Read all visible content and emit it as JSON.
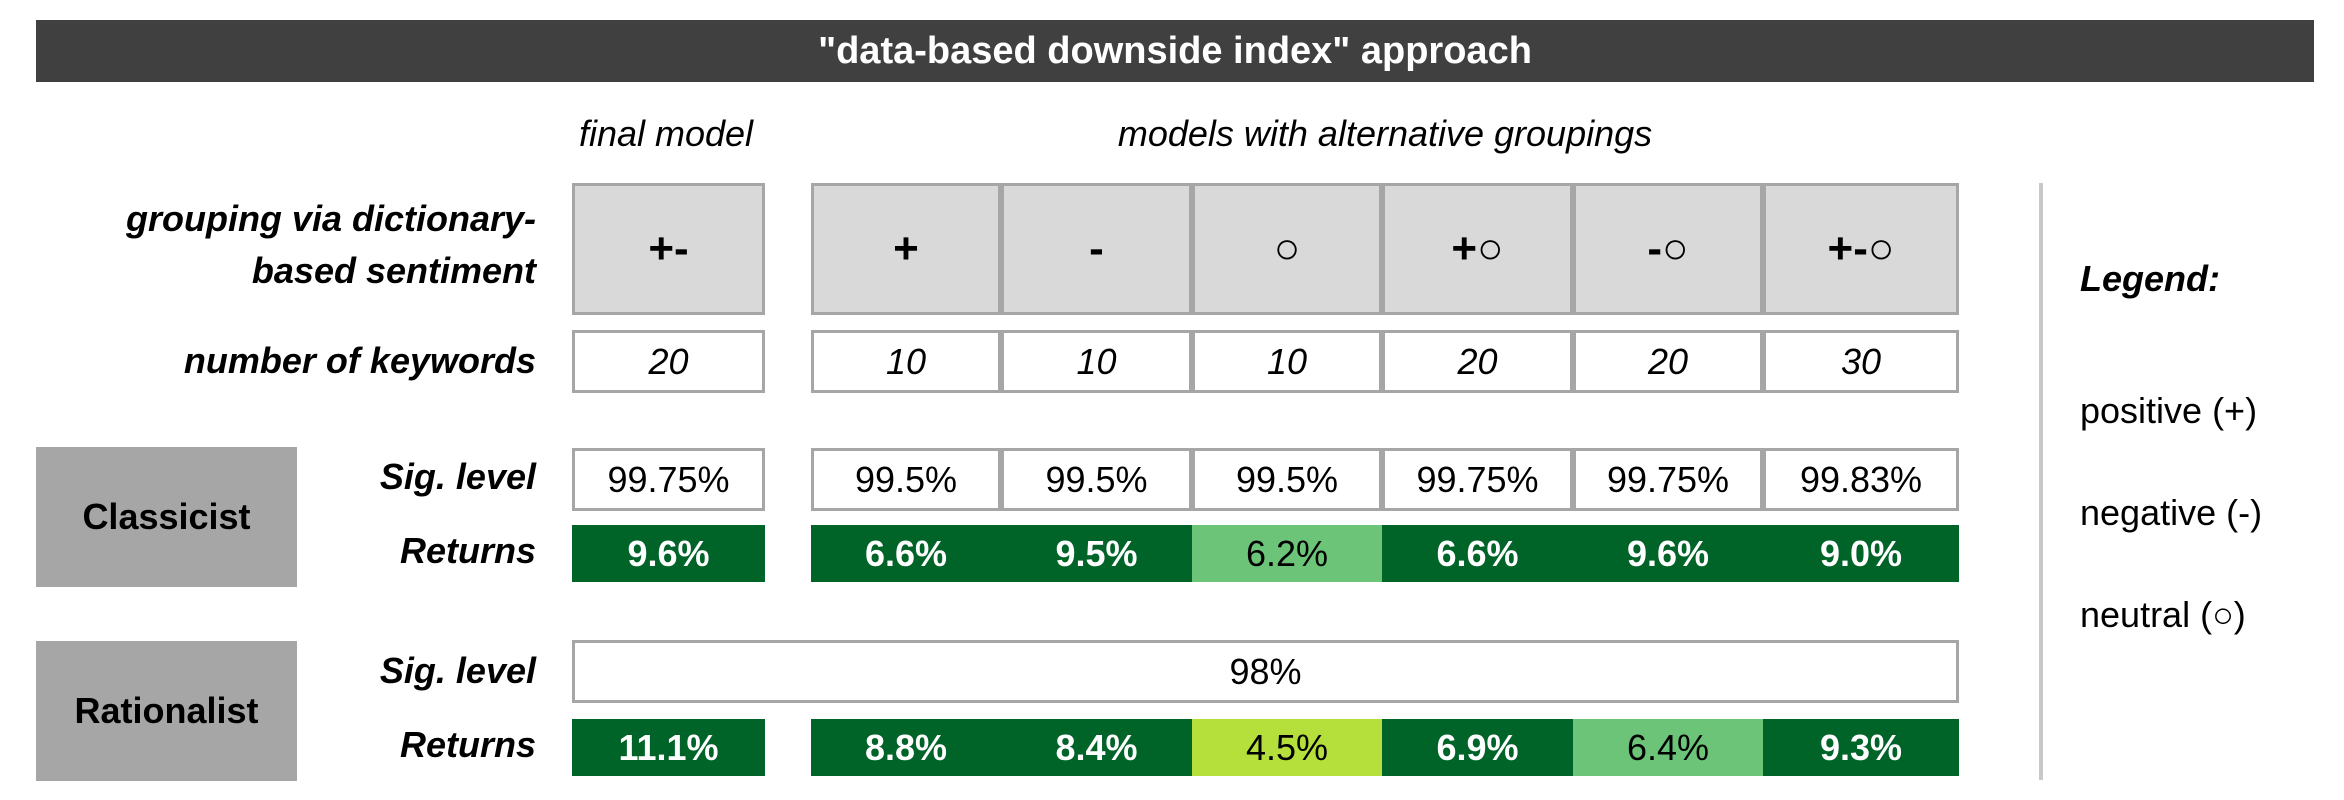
{
  "title": "\"data-based downside index\" approach",
  "headers": {
    "final_model": "final model",
    "alternatives": "models with alternative groupings"
  },
  "row_labels": {
    "grouping_line1": "grouping via dictionary-",
    "grouping_line2": "based sentiment",
    "keywords": "number of keywords",
    "sig_level": "Sig. level",
    "returns": "Returns"
  },
  "columns": [
    {
      "grouping": "+-",
      "keywords": "20"
    },
    {
      "grouping": "+",
      "keywords": "10"
    },
    {
      "grouping": "-",
      "keywords": "10"
    },
    {
      "grouping": "○",
      "keywords": "10"
    },
    {
      "grouping": "+○",
      "keywords": "20"
    },
    {
      "grouping": "-○",
      "keywords": "20"
    },
    {
      "grouping": "+-○",
      "keywords": "30"
    }
  ],
  "strategies": [
    {
      "name": "Classicist",
      "sig_levels": [
        "99.75%",
        "99.5%",
        "99.5%",
        "99.5%",
        "99.75%",
        "99.75%",
        "99.83%"
      ],
      "returns": [
        {
          "value": "9.6%",
          "color": "#006328"
        },
        {
          "value": "6.6%",
          "color": "#006328"
        },
        {
          "value": "9.5%",
          "color": "#006328"
        },
        {
          "value": "6.2%",
          "color": "#6cc478"
        },
        {
          "value": "6.6%",
          "color": "#006328"
        },
        {
          "value": "9.6%",
          "color": "#006328"
        },
        {
          "value": "9.0%",
          "color": "#006328"
        }
      ]
    },
    {
      "name": "Rationalist",
      "sig_level_all": "98%",
      "returns": [
        {
          "value": "11.1%",
          "color": "#006328"
        },
        {
          "value": "8.8%",
          "color": "#006328"
        },
        {
          "value": "8.4%",
          "color": "#006328"
        },
        {
          "value": "4.5%",
          "color": "#b5df3a"
        },
        {
          "value": "6.9%",
          "color": "#006328"
        },
        {
          "value": "6.4%",
          "color": "#6cc478"
        },
        {
          "value": "9.3%",
          "color": "#006328"
        }
      ]
    }
  ],
  "legend": {
    "title": "Legend:",
    "items": [
      "positive (+)",
      "negative (-)",
      "neutral (○)"
    ]
  }
}
